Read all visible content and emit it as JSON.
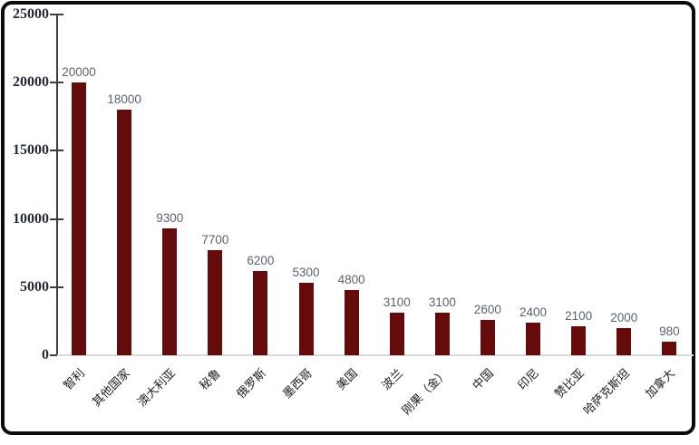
{
  "chart_data": {
    "type": "bar",
    "title": "",
    "xlabel": "",
    "ylabel": "",
    "grid": false,
    "legend": "none",
    "data_labels_shown": true,
    "categories": [
      "智利",
      "其他国家",
      "澳大利亚",
      "秘鲁",
      "俄罗斯",
      "墨西哥",
      "美国",
      "波兰",
      "刚果（金）",
      "中国",
      "印尼",
      "赞比亚",
      "哈萨克斯坦",
      "加拿大"
    ],
    "values": [
      20000,
      18000,
      9300,
      7700,
      6200,
      5300,
      4800,
      3100,
      3100,
      2600,
      2400,
      2100,
      2000,
      980
    ],
    "data_labels": [
      "20000",
      "18000",
      "9300",
      "7700",
      "6200",
      "5300",
      "4800",
      "3100",
      "3100",
      "2600",
      "2400",
      "2100",
      "2000",
      "980"
    ],
    "y_axis": {
      "min": 0,
      "max": 25000,
      "ticks": [
        "0",
        "5000",
        "10000",
        "15000",
        "20000",
        "25000"
      ]
    },
    "colors": {
      "bar": "#660B0B",
      "value_label": "#5A6270",
      "y_tick_label": "#262A35",
      "x_tick_label": "#1A1C20",
      "axis_line": "#3F3F3F",
      "baseline": "#D9D9D9",
      "frame_border": "#0B0B0D",
      "background": "#FFFFFF"
    }
  }
}
